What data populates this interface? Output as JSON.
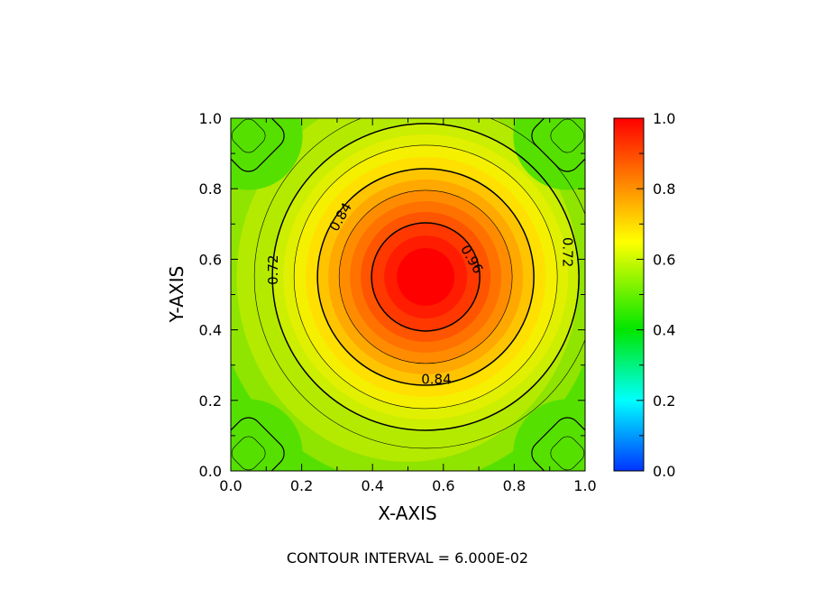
{
  "chart_data": {
    "type": "heatmap",
    "subtype": "filled-contour",
    "xlabel": "X-AXIS",
    "ylabel": "Y-AXIS",
    "xlim": [
      0.0,
      1.0
    ],
    "ylim": [
      0.0,
      1.0
    ],
    "x_ticks": [
      "0.0",
      "0.2",
      "0.4",
      "0.6",
      "0.8",
      "1.0"
    ],
    "y_ticks": [
      "0.0",
      "0.2",
      "0.4",
      "0.6",
      "0.8",
      "1.0"
    ],
    "colorbar": {
      "range": [
        0.0,
        1.0
      ],
      "ticks": [
        "0.0",
        "0.2",
        "0.4",
        "0.6",
        "0.8",
        "1.0"
      ],
      "colormap": [
        "#0033ff",
        "#00ffff",
        "#00e600",
        "#ffff00",
        "#ff0000"
      ]
    },
    "contour_interval_text": "CONTOUR INTERVAL = 6.000E-02",
    "contour_levels": [
      0.66,
      0.72,
      0.78,
      0.84,
      0.9,
      0.96
    ],
    "contour_labels": [
      {
        "text": "0.72",
        "x": 0.12,
        "y": 0.57,
        "rotate": -90
      },
      {
        "text": "0.84",
        "x": 0.31,
        "y": 0.72,
        "rotate": -60
      },
      {
        "text": "0.96",
        "x": 0.68,
        "y": 0.6,
        "rotate": 60
      },
      {
        "text": "0.72",
        "x": 0.95,
        "y": 0.62,
        "rotate": 90
      },
      {
        "text": "0.84",
        "x": 0.58,
        "y": 0.26,
        "rotate": 0
      }
    ],
    "peak": {
      "x": 0.55,
      "y": 0.55,
      "value": 1.0
    },
    "background_value": 0.55
  }
}
